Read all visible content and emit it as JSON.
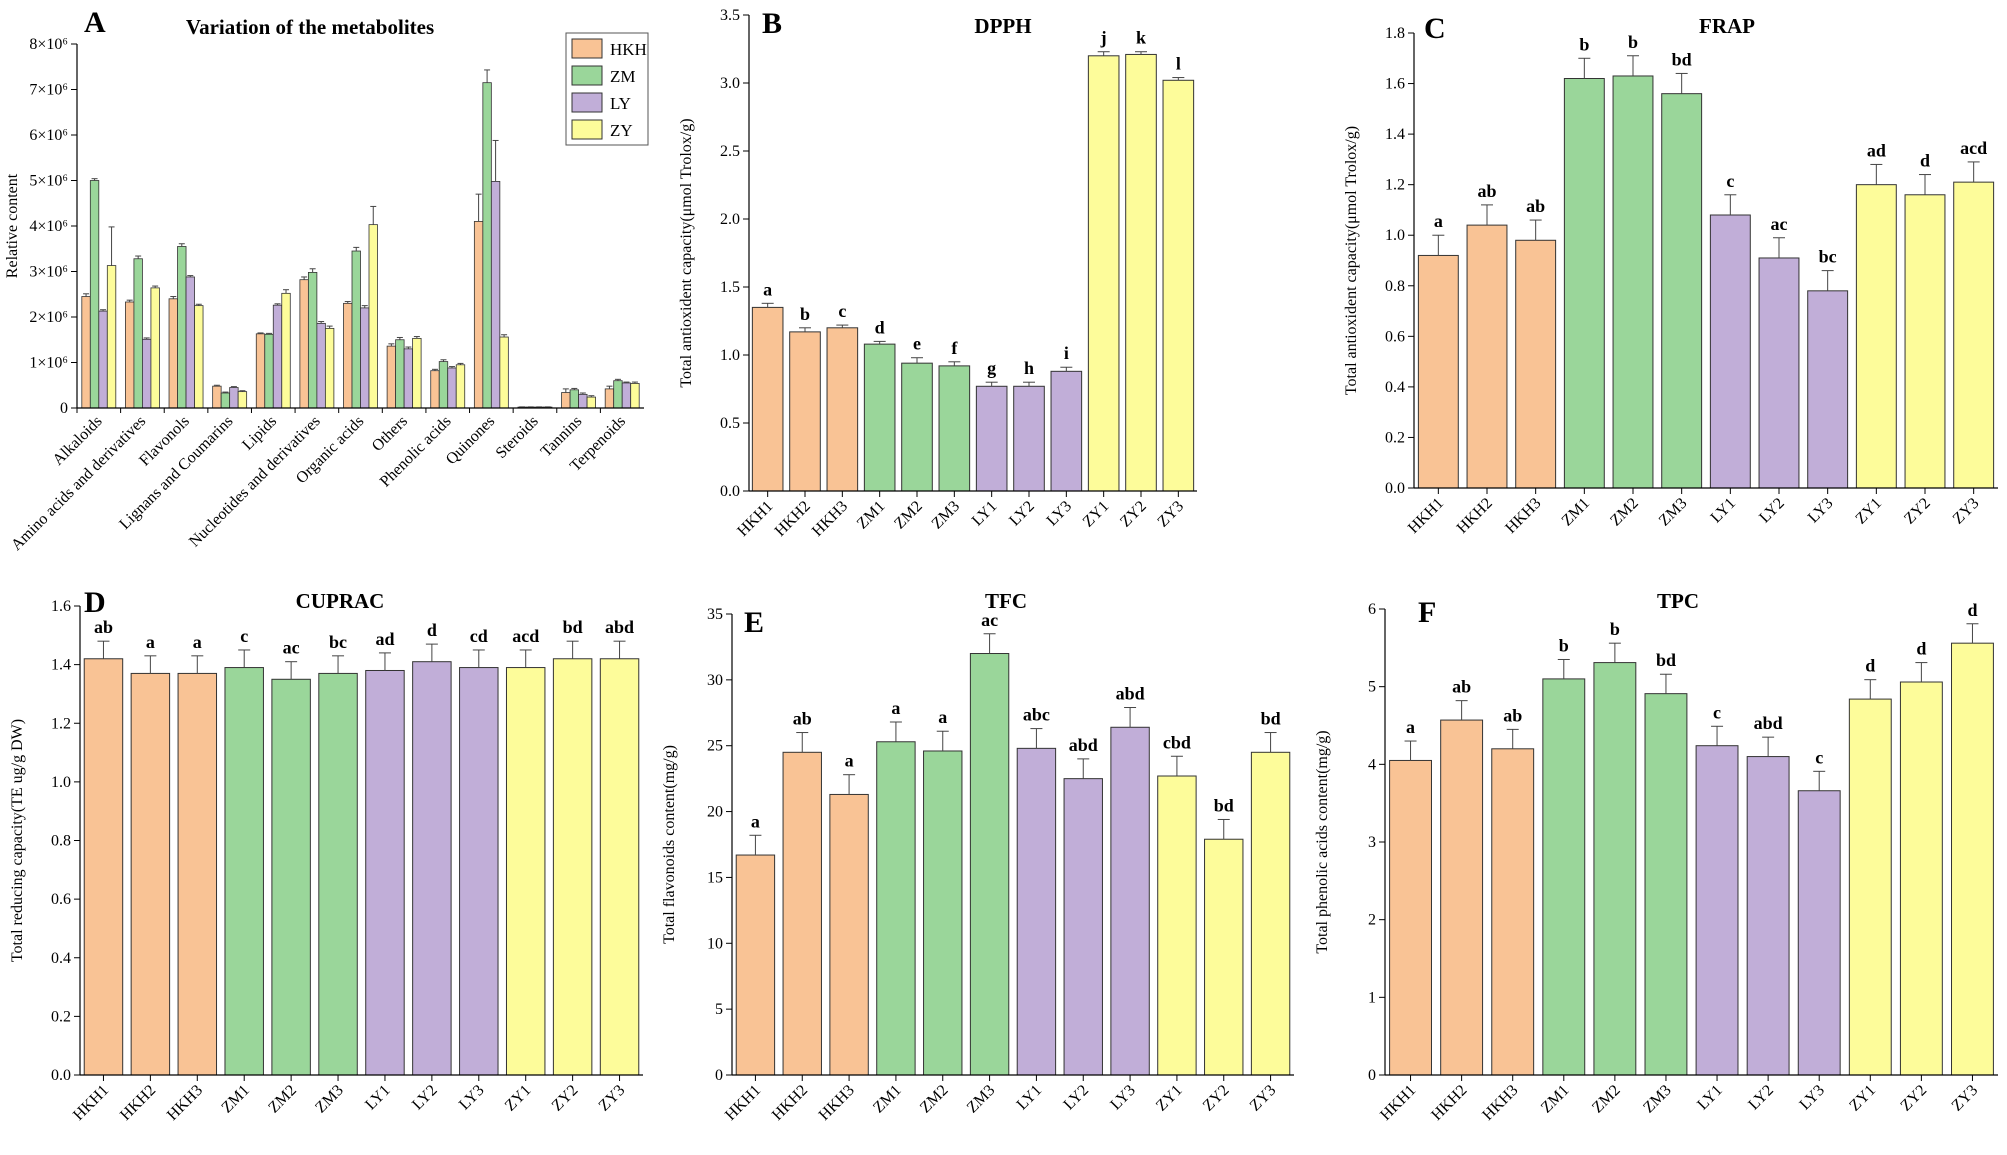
{
  "colors": {
    "HKH": "#f9c395",
    "ZM": "#9ad69a",
    "LY": "#c1aed8",
    "ZY": "#fdfc9a",
    "axis": "#000000",
    "error": "#444444"
  },
  "chart_data": [
    {
      "id": "A",
      "letter": "A",
      "type": "bar",
      "title": "Variation of the metabolites",
      "xlabel": "",
      "ylabel": "Relative content",
      "ylim": [
        0,
        8000000
      ],
      "yticks": [
        0,
        1000000,
        2000000,
        3000000,
        4000000,
        5000000,
        6000000,
        7000000,
        8000000
      ],
      "ytick_labels": [
        "0",
        "1×10⁶",
        "2×10⁶",
        "3×10⁶",
        "4×10⁶",
        "5×10⁶",
        "6×10⁶",
        "7×10⁶",
        "8×10⁶"
      ],
      "legend": [
        "HKH",
        "ZM",
        "LY",
        "ZY"
      ],
      "legend_position": "top-right",
      "categories": [
        "Alkaloids",
        "Amino acids and derivatives",
        "Flavonols",
        "Lignans and Coumarins",
        "Lipids",
        "Nucleotides and derivatives",
        "Organic acids",
        "Others",
        "Phenolic acids",
        "Quinones",
        "Steroids",
        "Tannins",
        "Terpenoids"
      ],
      "series": [
        {
          "name": "HKH",
          "values": [
            2450000,
            2330000,
            2400000,
            480000,
            1630000,
            2820000,
            2300000,
            1360000,
            820000,
            4100000,
            20000,
            340000,
            420000
          ],
          "errors": [
            60000,
            40000,
            50000,
            20000,
            20000,
            60000,
            40000,
            50000,
            30000,
            600000,
            5000,
            80000,
            60000
          ]
        },
        {
          "name": "ZM",
          "values": [
            5000000,
            3280000,
            3550000,
            330000,
            1620000,
            2980000,
            3450000,
            1500000,
            1020000,
            7150000,
            20000,
            400000,
            600000
          ],
          "errors": [
            40000,
            60000,
            60000,
            20000,
            20000,
            80000,
            80000,
            50000,
            40000,
            280000,
            5000,
            30000,
            30000
          ]
        },
        {
          "name": "LY",
          "values": [
            2130000,
            1510000,
            2880000,
            450000,
            2260000,
            1860000,
            2200000,
            1300000,
            880000,
            4980000,
            20000,
            300000,
            550000
          ],
          "errors": [
            30000,
            30000,
            30000,
            20000,
            30000,
            40000,
            50000,
            40000,
            30000,
            900000,
            5000,
            30000,
            20000
          ]
        },
        {
          "name": "ZY",
          "values": [
            3130000,
            2640000,
            2250000,
            360000,
            2520000,
            1750000,
            4030000,
            1530000,
            950000,
            1560000,
            20000,
            240000,
            540000
          ],
          "errors": [
            850000,
            40000,
            30000,
            20000,
            80000,
            50000,
            400000,
            40000,
            30000,
            50000,
            5000,
            30000,
            30000
          ]
        }
      ]
    },
    {
      "id": "B",
      "letter": "B",
      "type": "bar",
      "title": "DPPH",
      "xlabel": "",
      "ylabel": "Total antioxident capacity(μmol Trolox/g)",
      "ylim": [
        0,
        3.5
      ],
      "yticks": [
        0.0,
        0.5,
        1.0,
        1.5,
        2.0,
        2.5,
        3.0,
        3.5
      ],
      "ytick_labels": [
        "0.0",
        "0.5",
        "1.0",
        "1.5",
        "2.0",
        "2.5",
        "3.0",
        "3.5"
      ],
      "categories": [
        "HKH1",
        "HKH2",
        "HKH3",
        "ZM1",
        "ZM2",
        "ZM3",
        "LY1",
        "LY2",
        "LY3",
        "ZY1",
        "ZY2",
        "ZY3"
      ],
      "values": [
        1.35,
        1.17,
        1.2,
        1.08,
        0.94,
        0.92,
        0.77,
        0.77,
        0.88,
        3.2,
        3.21,
        3.02
      ],
      "errors": [
        0.03,
        0.03,
        0.02,
        0.02,
        0.04,
        0.03,
        0.03,
        0.03,
        0.03,
        0.03,
        0.02,
        0.02
      ],
      "labels": [
        "a",
        "b",
        "c",
        "d",
        "e",
        "f",
        "g",
        "h",
        "i",
        "j",
        "k",
        "l"
      ]
    },
    {
      "id": "C",
      "letter": "C",
      "type": "bar",
      "title": "FRAP",
      "xlabel": "",
      "ylabel": "Total antioxident capacity(μmol Trolox/g)",
      "ylim": [
        0,
        1.8
      ],
      "yticks": [
        0.0,
        0.2,
        0.4,
        0.6,
        0.8,
        1.0,
        1.2,
        1.4,
        1.6,
        1.8
      ],
      "ytick_labels": [
        "0.0",
        "0.2",
        "0.4",
        "0.6",
        "0.8",
        "1.0",
        "1.2",
        "1.4",
        "1.6",
        "1.8"
      ],
      "categories": [
        "HKH1",
        "HKH2",
        "HKH3",
        "ZM1",
        "ZM2",
        "ZM3",
        "LY1",
        "LY2",
        "LY3",
        "ZY1",
        "ZY2",
        "ZY3"
      ],
      "values": [
        0.92,
        1.04,
        0.98,
        1.62,
        1.63,
        1.56,
        1.08,
        0.91,
        0.78,
        1.2,
        1.16,
        1.21
      ],
      "errors": [
        0.08,
        0.08,
        0.08,
        0.08,
        0.08,
        0.08,
        0.08,
        0.08,
        0.08,
        0.08,
        0.08,
        0.08
      ],
      "labels": [
        "a",
        "ab",
        "ab",
        "b",
        "b",
        "bd",
        "c",
        "ac",
        "bc",
        "ad",
        "d",
        "acd"
      ]
    },
    {
      "id": "D",
      "letter": "D",
      "type": "bar",
      "title": "CUPRAC",
      "xlabel": "",
      "ylabel": "Total reducing capacity(TE ug/g DW)",
      "ylim": [
        0,
        1.6
      ],
      "yticks": [
        0.0,
        0.2,
        0.4,
        0.6,
        0.8,
        1.0,
        1.2,
        1.4,
        1.6
      ],
      "ytick_labels": [
        "0.0",
        "0.2",
        "0.4",
        "0.6",
        "0.8",
        "1.0",
        "1.2",
        "1.4",
        "1.6"
      ],
      "categories": [
        "HKH1",
        "HKH2",
        "HKH3",
        "ZM1",
        "ZM2",
        "ZM3",
        "LY1",
        "LY2",
        "LY3",
        "ZY1",
        "ZY2",
        "ZY3"
      ],
      "values": [
        1.42,
        1.37,
        1.37,
        1.39,
        1.35,
        1.37,
        1.38,
        1.41,
        1.39,
        1.39,
        1.42,
        1.42
      ],
      "errors": [
        0.06,
        0.06,
        0.06,
        0.06,
        0.06,
        0.06,
        0.06,
        0.06,
        0.06,
        0.06,
        0.06,
        0.06
      ],
      "labels": [
        "ab",
        "a",
        "a",
        "c",
        "ac",
        "bc",
        "ad",
        "d",
        "cd",
        "acd",
        "bd",
        "abd"
      ]
    },
    {
      "id": "E",
      "letter": "E",
      "type": "bar",
      "title": "TFC",
      "xlabel": "",
      "ylabel": "Total flavonoids content(mg/g)",
      "ylim": [
        0,
        35
      ],
      "yticks": [
        0,
        5,
        10,
        15,
        20,
        25,
        30,
        35
      ],
      "ytick_labels": [
        "0",
        "5",
        "10",
        "15",
        "20",
        "25",
        "30",
        "35"
      ],
      "categories": [
        "HKH1",
        "HKH2",
        "HKH3",
        "ZM1",
        "ZM2",
        "ZM3",
        "LY1",
        "LY2",
        "LY3",
        "ZY1",
        "ZY2",
        "ZY3"
      ],
      "values": [
        16.7,
        24.5,
        21.3,
        25.3,
        24.6,
        32.0,
        24.8,
        22.5,
        26.4,
        22.7,
        17.9,
        24.5
      ],
      "errors": [
        1.5,
        1.5,
        1.5,
        1.5,
        1.5,
        1.5,
        1.5,
        1.5,
        1.5,
        1.5,
        1.5,
        1.5
      ],
      "labels": [
        "a",
        "ab",
        "a",
        "a",
        "a",
        "ac",
        "abc",
        "abd",
        "abd",
        "cbd",
        "bd",
        "bd"
      ]
    },
    {
      "id": "F",
      "letter": "F",
      "type": "bar",
      "title": "TPC",
      "xlabel": "",
      "ylabel": "Total phenolic acids content(mg/g)",
      "ylim": [
        0,
        6
      ],
      "yticks": [
        0,
        1,
        2,
        3,
        4,
        5,
        6
      ],
      "ytick_labels": [
        "0",
        "1",
        "2",
        "3",
        "4",
        "5",
        "6"
      ],
      "categories": [
        "HKH1",
        "HKH2",
        "HKH3",
        "ZM1",
        "ZM2",
        "ZM3",
        "LY1",
        "LY2",
        "LY3",
        "ZY1",
        "ZY2",
        "ZY3"
      ],
      "values": [
        4.05,
        4.57,
        4.2,
        5.1,
        5.31,
        4.91,
        4.24,
        4.1,
        3.66,
        4.84,
        5.06,
        5.56
      ],
      "errors": [
        0.25,
        0.25,
        0.25,
        0.25,
        0.25,
        0.25,
        0.25,
        0.25,
        0.25,
        0.25,
        0.25,
        0.25
      ],
      "labels": [
        "a",
        "ab",
        "ab",
        "b",
        "b",
        "bd",
        "c",
        "abd",
        "c",
        "d",
        "d",
        "d"
      ]
    }
  ]
}
